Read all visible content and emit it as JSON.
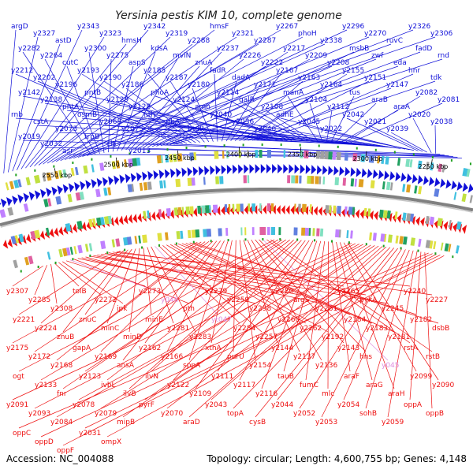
{
  "title": "Yersinia pestis KIM 10, complete genome",
  "accession": "Accession: NC_004088",
  "topology": "Topology: circular; Length: 4,600,755 bp; Genes: 4,148",
  "colors": {
    "forward": "#1010d8",
    "reverse": "#ee1010",
    "pseudo": "#e090e0",
    "backbone": "#808080"
  },
  "ticks": [
    "2550 kbp",
    "2500 kbp",
    "2450 kbp",
    "2400 kbp",
    "2350 kbp",
    "2300 kbp",
    "2250 kbp"
  ],
  "top_labels": [
    "argD",
    "y2327",
    "astD",
    "y2343",
    "y2323",
    "hmsH",
    "y2342",
    "y2319",
    "y2288",
    "hmsF",
    "y2321",
    "y2287",
    "y2267",
    "phoH",
    "y2338",
    "y2296",
    "y2270",
    "ruvC",
    "y2326",
    "y2306",
    "y2282",
    "y2264",
    "cutC",
    "y2300",
    "y2275",
    "aspS",
    "kdsA",
    "mviN",
    "znuA",
    "y2237",
    "y2226",
    "y2222",
    "y2217",
    "y2209",
    "y2208",
    "msbB",
    "zwf",
    "eda",
    "fadD",
    "rnd",
    "y2212",
    "y2202",
    "y2196",
    "y2193",
    "y2190",
    "y2186",
    "y2185",
    "y2187",
    "y2180",
    "fadR",
    "dadA",
    "y2171",
    "y2167",
    "y2163",
    "y2164",
    "y2155",
    "y2151",
    "y2147",
    "hnr",
    "tdk",
    "y2142",
    "y2138",
    "pntA",
    "pntB",
    "y2129",
    "y2128",
    "phoA",
    "y2124",
    "amn",
    "y2114",
    "galR",
    "y2108",
    "manA",
    "y2104",
    "y2112",
    "tus",
    "araB",
    "araA",
    "y2082",
    "y2081",
    "rnb",
    "cstA",
    "y2073",
    "osmB",
    "y2068",
    "y2075",
    "nth",
    "ribA",
    "btuR",
    "y2040",
    "y2036",
    "y2046",
    "adhE",
    "y2045",
    "y2022",
    "y2042",
    "y2021",
    "y2039",
    "y2020",
    "y2038",
    "y2019",
    "y2032",
    "asr",
    "trpB",
    "cls",
    "y2013"
  ],
  "bottom_labels": [
    "y2307",
    "y2285",
    "y2308",
    "tolB",
    "y2272",
    "ipk",
    "y2273",
    "y046",
    "pth",
    "y2279",
    "y2259",
    "y2298",
    "y2280",
    "argS",
    "y2261",
    "y2265",
    "pykA",
    "y2245",
    "y2240",
    "y2227",
    "y2221",
    "y2224",
    "znuB",
    "znuC",
    "minC",
    "minD",
    "minE",
    "y2281",
    "y2283",
    "yt047",
    "y2284",
    "y2257",
    "y2260",
    "y2262",
    "y2192",
    "y2184",
    "y2183",
    "y2181",
    "y2182",
    "dsbB",
    "y2175",
    "y2172",
    "y2168",
    "gapA",
    "y2169",
    "ansA",
    "y2162",
    "y2166",
    "sppA",
    "xthA",
    "purU",
    "y2154",
    "y2144",
    "y2137",
    "y2136",
    "y2143",
    "hns",
    "y045",
    "rstA",
    "rstB",
    "ogt",
    "y2133",
    "fnr",
    "y2123",
    "ivbL",
    "ilvB",
    "ilvN",
    "y2122",
    "y2109",
    "y2111",
    "y2117",
    "y2116",
    "tauB",
    "fumC",
    "mlc",
    "araF",
    "araG",
    "araH",
    "y2099",
    "y2090",
    "y2091",
    "y2093",
    "y2084",
    "y2078",
    "y2079",
    "mipB",
    "pyrF",
    "y2070",
    "araD",
    "y2043",
    "topA",
    "cysB",
    "y2044",
    "y2052",
    "y2053",
    "y2054",
    "sohB",
    "y2059",
    "oppA",
    "oppB",
    "oppC",
    "oppD",
    "oppF",
    "y2031",
    "ompX"
  ]
}
